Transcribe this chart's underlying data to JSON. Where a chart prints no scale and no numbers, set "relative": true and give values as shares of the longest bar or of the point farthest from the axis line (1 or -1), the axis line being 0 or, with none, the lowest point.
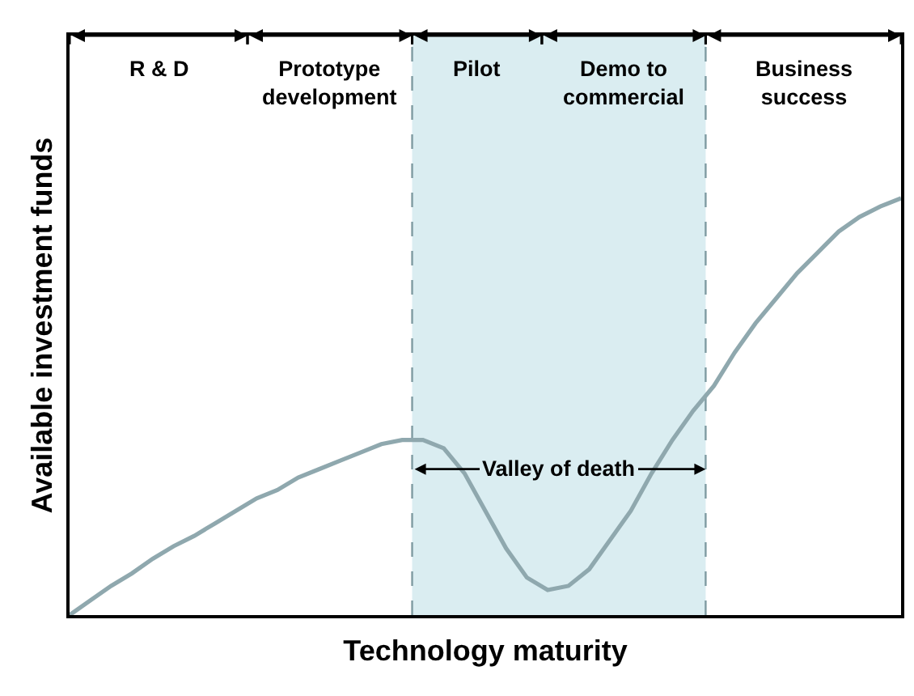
{
  "chart_data": {
    "type": "line",
    "relative": true,
    "xlabel": "Technology maturity",
    "ylabel": "Available investment funds",
    "categories": [
      null,
      null,
      null,
      null,
      null,
      null,
      null,
      null,
      null,
      null,
      null,
      null,
      null,
      null,
      null,
      null,
      null,
      null,
      null,
      null,
      null,
      null,
      null,
      null,
      null,
      null,
      null,
      null,
      null,
      null,
      null,
      null,
      null,
      null,
      null,
      null,
      null,
      null,
      null,
      null,
      null
    ],
    "marker": "none",
    "line_style": "solid",
    "series": [
      {
        "color": "#8fa8ae",
        "values": [
          0,
          0.035,
          0.07,
          0.1,
          0.135,
          0.165,
          0.19,
          0.22,
          0.25,
          0.28,
          0.3,
          0.33,
          0.35,
          0.37,
          0.39,
          0.41,
          0.42,
          0.42,
          0.4,
          0.34,
          0.25,
          0.16,
          0.09,
          0.06,
          0.07,
          0.11,
          0.18,
          0.25,
          0.34,
          0.42,
          0.49,
          0.55,
          0.63,
          0.7,
          0.76,
          0.82,
          0.87,
          0.92,
          0.955,
          0.98,
          1
        ]
      }
    ],
    "annotations": [
      "R & D",
      "Prototype\ndevelopment",
      "Pilot",
      "Demo to\ncommercial",
      "Business\nsuccess",
      "Valley of death"
    ]
  }
}
